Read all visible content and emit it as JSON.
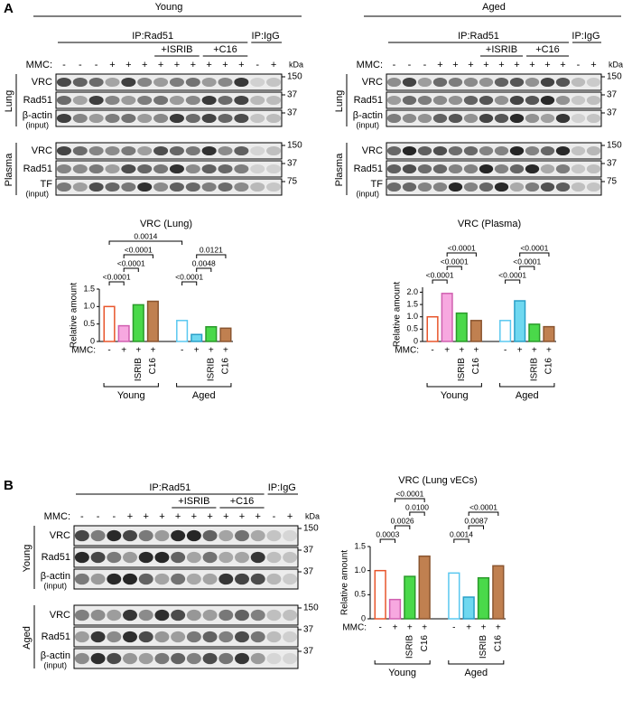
{
  "figure": {
    "panel_a": {
      "letter": "A",
      "blots": [
        {
          "group": "Young",
          "group_color": "#e8231e",
          "ip": "IP:Rad51",
          "treatments": [
            "+ISRIB",
            "+C16"
          ],
          "igg": "IP:IgG",
          "mmc_label": "MMC:",
          "mmc": [
            "-",
            "-",
            "-",
            "+",
            "+",
            "+",
            "+",
            "+",
            "+",
            "+",
            "+",
            "+",
            "-",
            "+"
          ],
          "kda": "kDa",
          "sections": [
            {
              "tissue": "Lung",
              "rows": [
                {
                  "label": "VRC",
                  "marker": "150"
                },
                {
                  "label": "Rad51",
                  "marker": "37"
                },
                {
                  "label": "β-actin",
                  "sublabel": "(input)",
                  "marker": "37"
                }
              ]
            },
            {
              "tissue": "Plasma",
              "rows": [
                {
                  "label": "VRC",
                  "marker": "150"
                },
                {
                  "label": "Rad51",
                  "marker": "37"
                },
                {
                  "label": "TF",
                  "sublabel": "(input)",
                  "marker": "75"
                }
              ]
            }
          ]
        },
        {
          "group": "Aged",
          "group_color": "#1c9ee6",
          "ip": "IP:Rad51",
          "treatments": [
            "+ISRIB",
            "+C16"
          ],
          "igg": "IP:IgG",
          "mmc_label": "MMC:",
          "mmc": [
            "-",
            "-",
            "-",
            "+",
            "+",
            "+",
            "+",
            "+",
            "+",
            "+",
            "+",
            "+",
            "-",
            "+"
          ],
          "kda": "kDa",
          "sections": [
            {
              "tissue": "Lung",
              "rows": [
                {
                  "label": "VRC",
                  "marker": "150"
                },
                {
                  "label": "Rad51",
                  "marker": "37"
                },
                {
                  "label": "β-actin",
                  "sublabel": "(input)",
                  "marker": "37"
                }
              ]
            },
            {
              "tissue": "Plasma",
              "rows": [
                {
                  "label": "VRC",
                  "marker": "150"
                },
                {
                  "label": "Rad51",
                  "marker": "37"
                },
                {
                  "label": "TF",
                  "sublabel": "(input)",
                  "marker": "75"
                }
              ]
            }
          ]
        }
      ]
    },
    "panel_b": {
      "letter": "B",
      "blots": [
        {
          "ip": "IP:Rad51",
          "treatments": [
            "+ISRIB",
            "+C16"
          ],
          "igg": "IP:IgG",
          "mmc_label": "MMC:",
          "mmc": [
            "-",
            "-",
            "-",
            "+",
            "+",
            "+",
            "+",
            "+",
            "+",
            "+",
            "+",
            "+",
            "-",
            "+"
          ],
          "kda": "kDa",
          "sections": [
            {
              "tissue": "Young",
              "tissue_color": "#e8231e",
              "rows": [
                {
                  "label": "VRC",
                  "marker": "150"
                },
                {
                  "label": "Rad51",
                  "marker": "37"
                },
                {
                  "label": "β-actin",
                  "sublabel": "(input)",
                  "marker": "37"
                }
              ]
            },
            {
              "tissue": "Aged",
              "tissue_color": "#1c9ee6",
              "rows": [
                {
                  "label": "VRC",
                  "marker": "150"
                },
                {
                  "label": "Rad51",
                  "marker": "37"
                },
                {
                  "label": "β-actin",
                  "sublabel": "(input)",
                  "marker": "37"
                }
              ]
            }
          ]
        }
      ]
    }
  },
  "chart_data": [
    {
      "type": "bar",
      "title": "VRC (Lung)",
      "ylabel": "Relative amount",
      "mmc_label": "MMC:",
      "mmc": [
        "-",
        "+",
        "+",
        "+",
        "-",
        "+",
        "+",
        "+"
      ],
      "categories": [
        null,
        null,
        "ISRIB",
        "C16",
        null,
        null,
        "ISRIB",
        "C16"
      ],
      "values": [
        1.0,
        0.45,
        1.05,
        1.15,
        0.6,
        0.2,
        0.42,
        0.38
      ],
      "colors": [
        "#ffffff",
        "#f7a8e0",
        "#4ad94a",
        "#c08050",
        "#ffffff",
        "#6fd8f0",
        "#4ad94a",
        "#c08050"
      ],
      "edgecolors": [
        "#e8552b",
        "#d060b0",
        "#2a9a2a",
        "#8a5530",
        "#5ac8f0",
        "#2aa0c8",
        "#2a9a2a",
        "#8a5530"
      ],
      "groups": [
        {
          "label": "Young",
          "color": "#e8231e",
          "span": [
            0,
            3
          ]
        },
        {
          "label": "Aged",
          "color": "#1c9ee6",
          "span": [
            4,
            7
          ]
        }
      ],
      "annotations": [
        {
          "text": "<0.0001",
          "between": [
            0,
            1
          ]
        },
        {
          "text": "<0.0001",
          "between": [
            1,
            2
          ]
        },
        {
          "text": "<0.0001",
          "between": [
            1,
            3
          ]
        },
        {
          "text": "0.0014",
          "between": [
            0,
            4
          ]
        },
        {
          "text": "<0.0001",
          "between": [
            4,
            5
          ]
        },
        {
          "text": "0.0048",
          "between": [
            5,
            6
          ]
        },
        {
          "text": "0.0121",
          "between": [
            5,
            7
          ]
        }
      ],
      "ylim": [
        0,
        1.5
      ],
      "yticks": [
        0,
        0.5,
        {
          "value": 1,
          "label": "1.0"
        },
        1.5
      ]
    },
    {
      "type": "bar",
      "title": "VRC (Plasma)",
      "ylabel": "Relative amount",
      "mmc_label": "MMC:",
      "mmc": [
        "-",
        "+",
        "+",
        "+",
        "-",
        "+",
        "+",
        "+"
      ],
      "categories": [
        null,
        null,
        "ISRIB",
        "C16",
        null,
        null,
        "ISRIB",
        "C16"
      ],
      "values": [
        1.0,
        1.95,
        1.15,
        0.85,
        0.85,
        1.65,
        0.7,
        0.6
      ],
      "colors": [
        "#ffffff",
        "#f7a8e0",
        "#4ad94a",
        "#c08050",
        "#ffffff",
        "#6fd8f0",
        "#4ad94a",
        "#c08050"
      ],
      "edgecolors": [
        "#e8552b",
        "#d060b0",
        "#2a9a2a",
        "#8a5530",
        "#5ac8f0",
        "#2aa0c8",
        "#2a9a2a",
        "#8a5530"
      ],
      "groups": [
        {
          "label": "Young",
          "color": "#e8231e",
          "span": [
            0,
            3
          ]
        },
        {
          "label": "Aged",
          "color": "#1c9ee6",
          "span": [
            4,
            7
          ]
        }
      ],
      "annotations": [
        {
          "text": "<0.0001",
          "between": [
            0,
            1
          ]
        },
        {
          "text": "<0.0001",
          "between": [
            1,
            2
          ]
        },
        {
          "text": "<0.0001",
          "between": [
            1,
            3
          ]
        },
        {
          "text": "<0.0001",
          "between": [
            4,
            5
          ]
        },
        {
          "text": "<0.0001",
          "between": [
            5,
            6
          ]
        },
        {
          "text": "<0.0001",
          "between": [
            5,
            7
          ]
        }
      ],
      "ylim": [
        0,
        2.2
      ],
      "yticks": [
        0,
        0.5,
        {
          "value": 1,
          "label": "1.0"
        },
        1.5,
        {
          "value": 2,
          "label": "2.0"
        }
      ]
    },
    {
      "type": "bar",
      "title": "VRC (Lung vECs)",
      "ylabel": "Relative amount",
      "mmc_label": "MMC:",
      "mmc": [
        "-",
        "+",
        "+",
        "+",
        "-",
        "+",
        "+",
        "+"
      ],
      "categories": [
        null,
        null,
        "ISRIB",
        "C16",
        null,
        null,
        "ISRIB",
        "C16"
      ],
      "values": [
        1.0,
        0.4,
        0.88,
        1.3,
        0.95,
        0.45,
        0.85,
        1.1
      ],
      "colors": [
        "#ffffff",
        "#f7a8e0",
        "#4ad94a",
        "#c08050",
        "#ffffff",
        "#6fd8f0",
        "#4ad94a",
        "#c08050"
      ],
      "edgecolors": [
        "#e8552b",
        "#d060b0",
        "#2a9a2a",
        "#8a5530",
        "#5ac8f0",
        "#2aa0c8",
        "#2a9a2a",
        "#8a5530"
      ],
      "groups": [
        {
          "label": "Young",
          "color": "#e8231e",
          "span": [
            0,
            3
          ]
        },
        {
          "label": "Aged",
          "color": "#1c9ee6",
          "span": [
            4,
            7
          ]
        }
      ],
      "annotations": [
        {
          "text": "0.0003",
          "between": [
            0,
            1
          ]
        },
        {
          "text": "0.0026",
          "between": [
            1,
            2
          ]
        },
        {
          "text": "0.0100",
          "between": [
            2,
            3
          ]
        },
        {
          "text": "<0.0001",
          "between": [
            1,
            3
          ]
        },
        {
          "text": "0.0014",
          "between": [
            4,
            5
          ]
        },
        {
          "text": "0.0087",
          "between": [
            5,
            6
          ]
        },
        {
          "text": "<0.0001",
          "between": [
            5,
            7
          ]
        }
      ],
      "ylim": [
        0,
        1.5
      ],
      "yticks": [
        0,
        0.5,
        {
          "value": 1,
          "label": "1.0"
        },
        1.5
      ]
    }
  ]
}
